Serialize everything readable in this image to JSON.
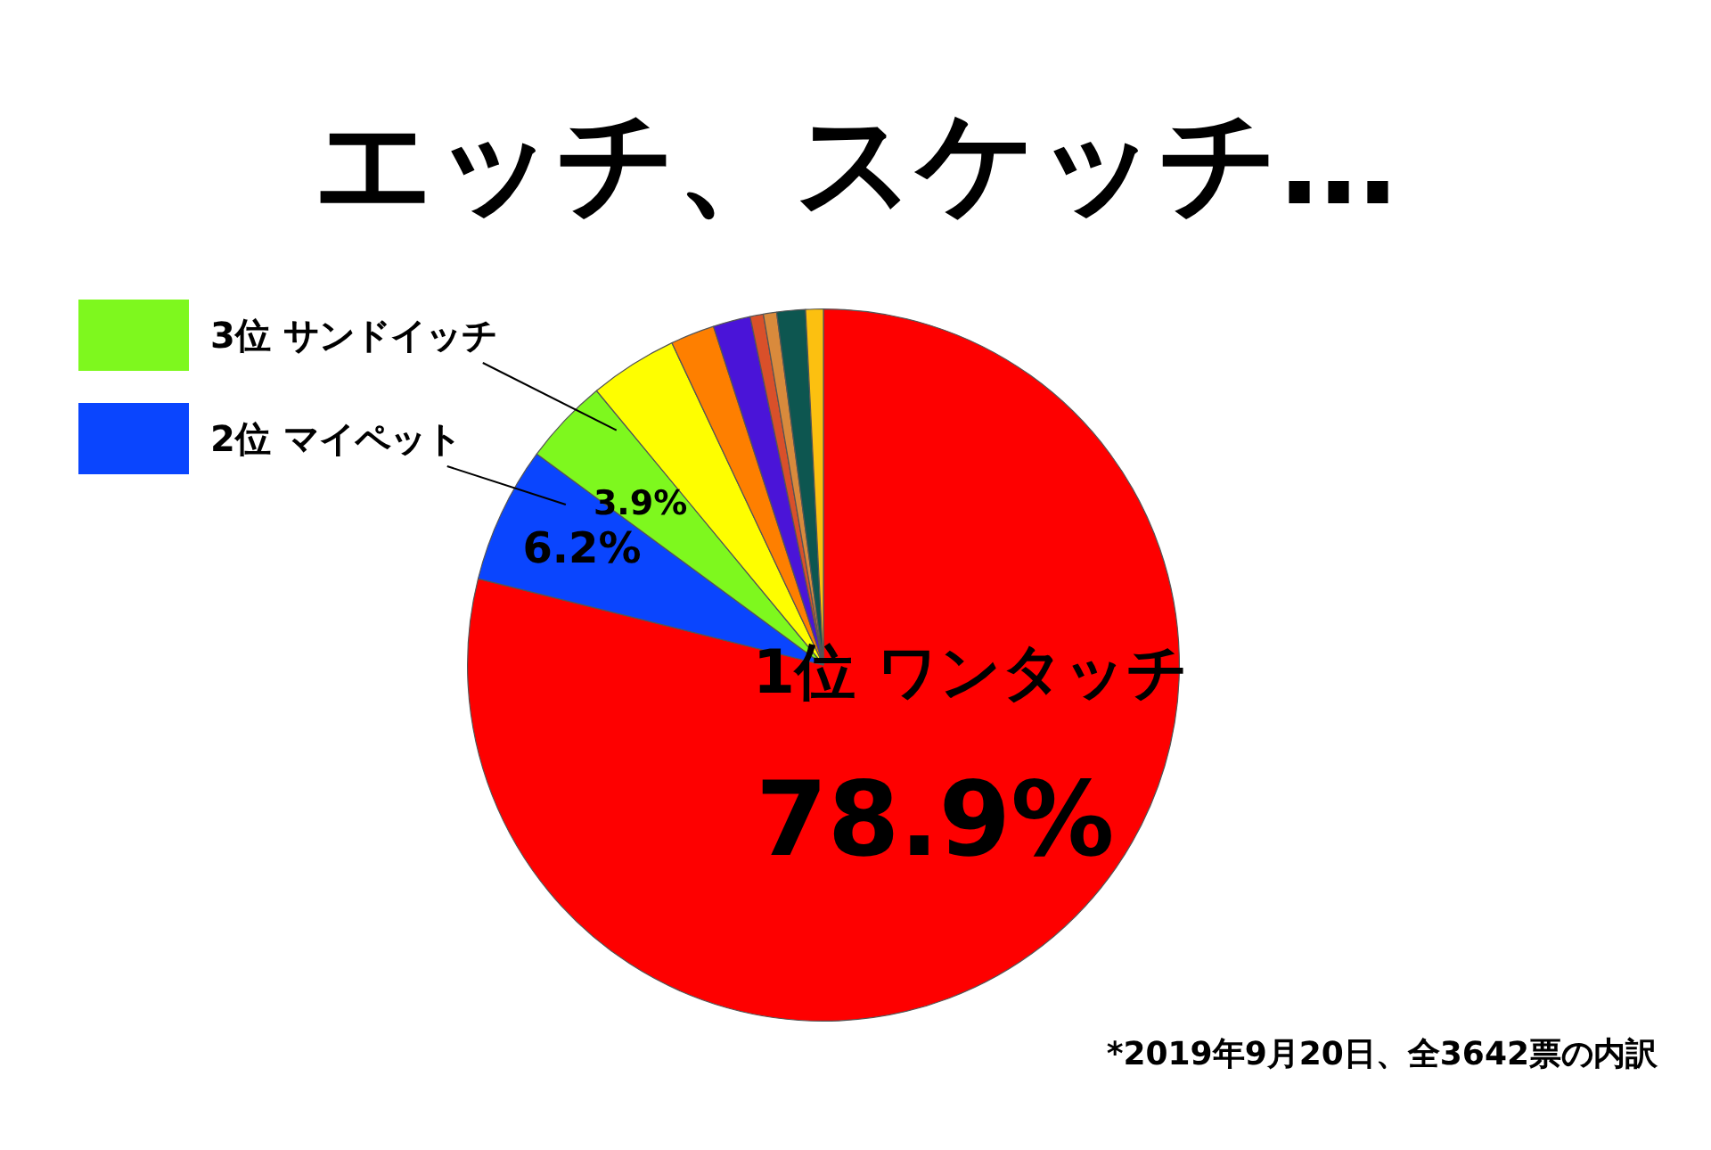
{
  "chart_data": {
    "type": "pie",
    "title": "エッチ、スケッチ…",
    "categories": [
      "1位 ワンタッチ",
      "2位 マイペット",
      "3位 サンドイッチ",
      null,
      null,
      null,
      null,
      null,
      null,
      null
    ],
    "values": [
      78.9,
      6.2,
      3.9,
      4.0,
      2.0,
      1.7,
      0.6,
      0.6,
      1.3,
      0.8
    ],
    "colors": [
      "#fe0000",
      "#0a45fe",
      "#7ef81e",
      "#fefe00",
      "#fe7f00",
      "#4a14d8",
      "#d9502a",
      "#d98a3c",
      "#0d5650",
      "#fcc010"
    ],
    "value_labels": [
      "78.9%",
      "6.2%",
      "3.9%",
      null,
      null,
      null,
      null,
      null,
      null,
      null
    ],
    "legend": "top left",
    "annotations": [
      "*2019年9月20日、全3642票の内訳"
    ]
  }
}
